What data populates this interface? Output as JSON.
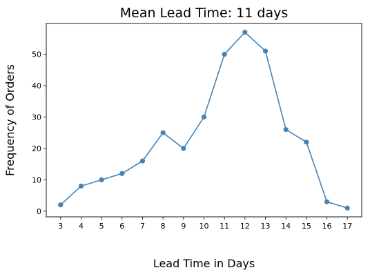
{
  "chart_data": {
    "type": "line",
    "title": "Mean Lead Time: 11 days",
    "xlabel": "Lead Time in Days",
    "ylabel": "Frequency of Orders",
    "x": [
      3,
      4,
      5,
      6,
      7,
      8,
      9,
      10,
      11,
      12,
      13,
      14,
      15,
      16,
      17
    ],
    "series": [
      {
        "values": [
          2,
          8,
          10,
          12,
          16,
          25,
          20,
          30,
          50,
          57,
          51,
          26,
          22,
          3,
          1
        ],
        "color": "#4682b4"
      }
    ],
    "xlim": [
      2.3,
      17.7
    ],
    "ylim": [
      -1.8,
      59.8
    ],
    "yticks": [
      0,
      10,
      20,
      30,
      40,
      50
    ],
    "grid": false,
    "legend": "none"
  }
}
